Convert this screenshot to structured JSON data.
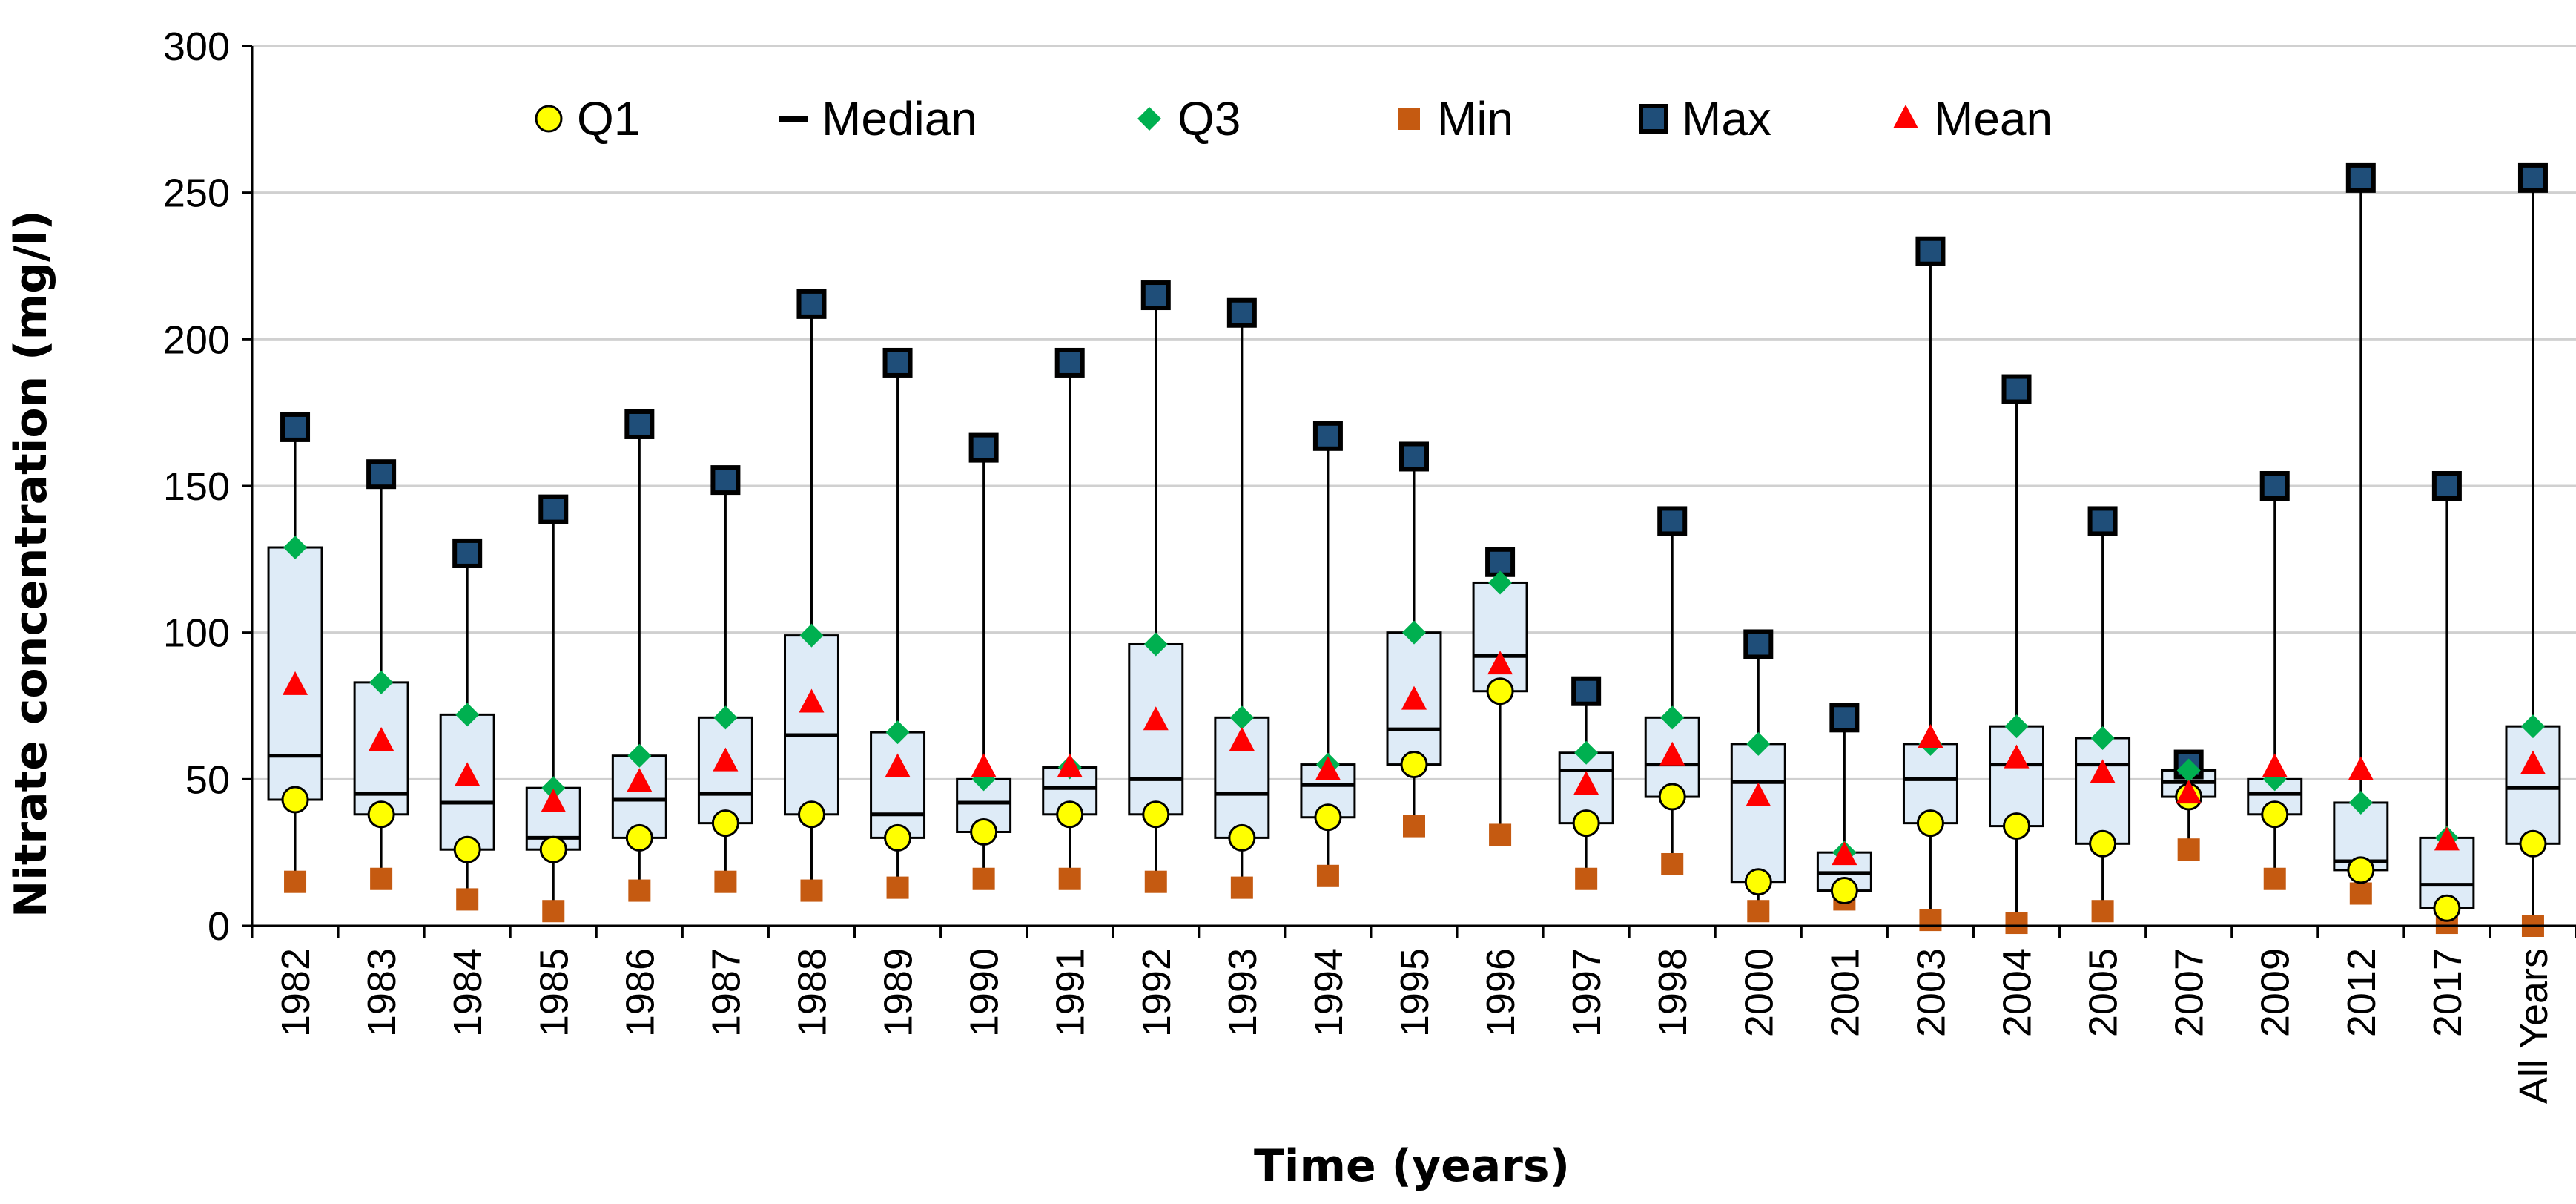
{
  "chart_data": {
    "type": "boxplot",
    "xlabel": "Time (years)",
    "ylabel": "Nitrate concentration (mg/l)",
    "ylim": [
      0,
      300
    ],
    "yticks": [
      0,
      50,
      100,
      150,
      200,
      250,
      300
    ],
    "grid": "horizontal",
    "legend_position": "top",
    "legend": [
      {
        "key": "q1",
        "label": "Q1",
        "marker": "circle",
        "color": "#FFFF00"
      },
      {
        "key": "median",
        "label": "Median",
        "marker": "dash",
        "color": "#000000"
      },
      {
        "key": "q3",
        "label": "Q3",
        "marker": "diamond",
        "color": "#00B050"
      },
      {
        "key": "min",
        "label": "Min",
        "marker": "square",
        "color": "#C55A11"
      },
      {
        "key": "max",
        "label": "Max",
        "marker": "square-outlined",
        "color": "#1F4E79"
      },
      {
        "key": "mean",
        "label": "Mean",
        "marker": "triangle",
        "color": "#FF0000"
      }
    ],
    "box_fill": "#DEEBF7",
    "categories": [
      "1982",
      "1983",
      "1984",
      "1985",
      "1986",
      "1987",
      "1988",
      "1989",
      "1990",
      "1991",
      "1992",
      "1993",
      "1994",
      "1995",
      "1996",
      "1997",
      "1998",
      "2000",
      "2001",
      "2003",
      "2004",
      "2005",
      "2007",
      "2009",
      "2012",
      "2017",
      "All Years"
    ],
    "series": [
      {
        "name": "Min",
        "values": [
          15,
          16,
          9,
          5,
          12,
          15,
          12,
          13,
          16,
          16,
          15,
          13,
          17,
          34,
          31,
          16,
          21,
          5,
          9,
          2,
          1,
          5,
          26,
          16,
          11,
          1,
          0
        ]
      },
      {
        "name": "Q1",
        "values": [
          43,
          38,
          26,
          26,
          30,
          35,
          38,
          30,
          32,
          38,
          38,
          30,
          37,
          55,
          80,
          35,
          44,
          15,
          12,
          35,
          34,
          28,
          44,
          38,
          19,
          6,
          28
        ]
      },
      {
        "name": "Median",
        "values": [
          58,
          45,
          42,
          30,
          43,
          45,
          65,
          38,
          42,
          47,
          50,
          45,
          48,
          67,
          92,
          53,
          55,
          49,
          18,
          50,
          55,
          55,
          49,
          45,
          22,
          14,
          47
        ]
      },
      {
        "name": "Q3",
        "values": [
          129,
          83,
          72,
          47,
          58,
          71,
          99,
          66,
          50,
          54,
          96,
          71,
          55,
          100,
          117,
          59,
          71,
          62,
          25,
          62,
          68,
          64,
          53,
          50,
          42,
          30,
          68
        ]
      },
      {
        "name": "Max",
        "values": [
          170,
          154,
          127,
          142,
          171,
          152,
          212,
          192,
          163,
          192,
          215,
          209,
          167,
          160,
          124,
          80,
          138,
          96,
          71,
          230,
          183,
          138,
          55,
          150,
          255,
          150,
          255
        ]
      },
      {
        "name": "Mean",
        "values": [
          82,
          63,
          51,
          42,
          49,
          56,
          76,
          54,
          54,
          54,
          70,
          63,
          53,
          77,
          89,
          48,
          58,
          44,
          24,
          64,
          57,
          52,
          45,
          54,
          53,
          29,
          55
        ]
      }
    ]
  }
}
